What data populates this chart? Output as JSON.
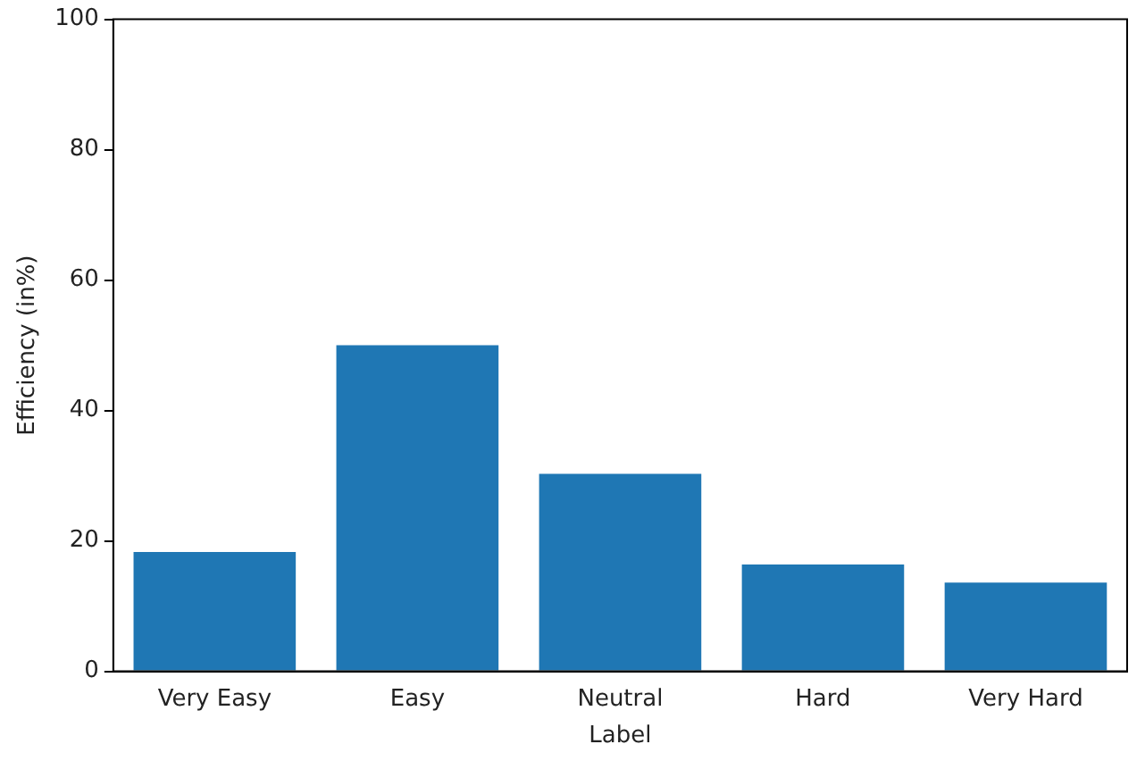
{
  "chart_data": {
    "type": "bar",
    "xlabel": "Label",
    "ylabel": "Efficiency (in%)",
    "categories": [
      "Very Easy",
      "Easy",
      "Neutral",
      "Hard",
      "Very Hard"
    ],
    "values": [
      18.3,
      50,
      30.3,
      16.4,
      13.6
    ],
    "color": "#1f77b4",
    "ylim": [
      0,
      100
    ],
    "yticks": [
      0,
      20,
      40,
      60,
      80,
      100
    ],
    "grid": false,
    "legend": false
  }
}
